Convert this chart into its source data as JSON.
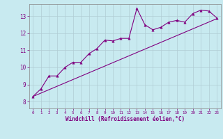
{
  "xlabel": "Windchill (Refroidissement éolien,°C)",
  "bg_color": "#c8eaf0",
  "line_color": "#800080",
  "xlim": [
    -0.5,
    23.5
  ],
  "ylim": [
    7.6,
    13.7
  ],
  "xticks": [
    0,
    1,
    2,
    3,
    4,
    5,
    6,
    7,
    8,
    9,
    10,
    11,
    12,
    13,
    14,
    15,
    16,
    17,
    18,
    19,
    20,
    21,
    22,
    23
  ],
  "yticks": [
    8,
    9,
    10,
    11,
    12,
    13
  ],
  "scatter_x": [
    0,
    1,
    2,
    3,
    4,
    5,
    6,
    7,
    8,
    9,
    10,
    11,
    12,
    13,
    14,
    15,
    16,
    17,
    18,
    19,
    20,
    21,
    22,
    23
  ],
  "scatter_y": [
    8.3,
    8.75,
    9.5,
    9.5,
    10.0,
    10.3,
    10.3,
    10.8,
    11.1,
    11.6,
    11.55,
    11.7,
    11.7,
    13.45,
    12.5,
    12.2,
    12.35,
    12.65,
    12.75,
    12.65,
    13.15,
    13.35,
    13.3,
    12.9
  ],
  "trend_x": [
    0,
    23
  ],
  "trend_y": [
    8.3,
    12.85
  ],
  "grid_color": "#b0ccd4"
}
